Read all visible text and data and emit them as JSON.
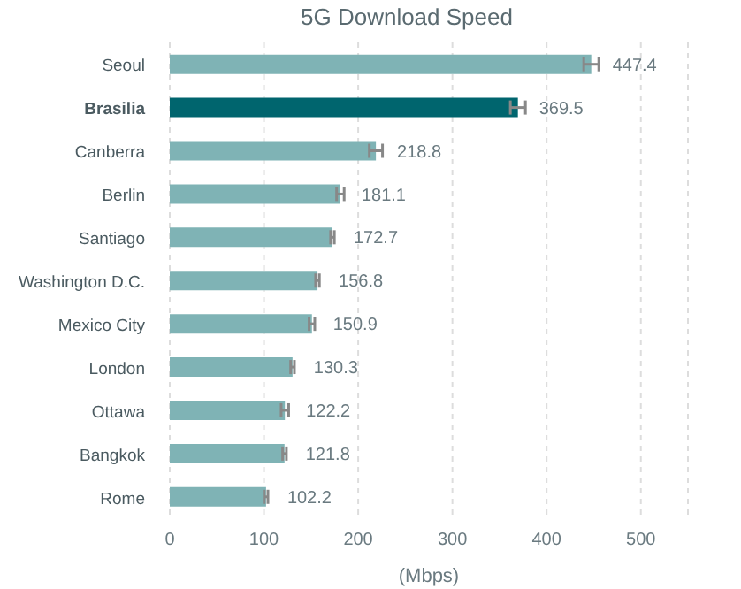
{
  "chart_data": {
    "type": "bar",
    "orientation": "horizontal",
    "title": "5G Download Speed",
    "xlabel": "(Mbps)",
    "categories": [
      "Seoul",
      "Brasilia",
      "Canberra",
      "Berlin",
      "Santiago",
      "Washington D.C.",
      "Mexico City",
      "London",
      "Ottawa",
      "Bangkok",
      "Rome"
    ],
    "values": [
      447.4,
      369.5,
      218.8,
      181.1,
      172.7,
      156.8,
      150.9,
      130.3,
      122.2,
      121.8,
      102.2
    ],
    "errors": [
      8,
      8,
      7,
      4,
      2,
      2,
      3,
      2,
      4,
      2,
      2
    ],
    "colors": [
      "#7fb3b5",
      "#00656e",
      "#7fb3b5",
      "#7fb3b5",
      "#7fb3b5",
      "#7fb3b5",
      "#7fb3b5",
      "#7fb3b5",
      "#7fb3b5",
      "#7fb3b5",
      "#7fb3b5"
    ],
    "data_labels": true,
    "xlim": [
      0,
      550
    ],
    "xticks": [
      0,
      100,
      200,
      300,
      400,
      500
    ],
    "grid": "x"
  }
}
